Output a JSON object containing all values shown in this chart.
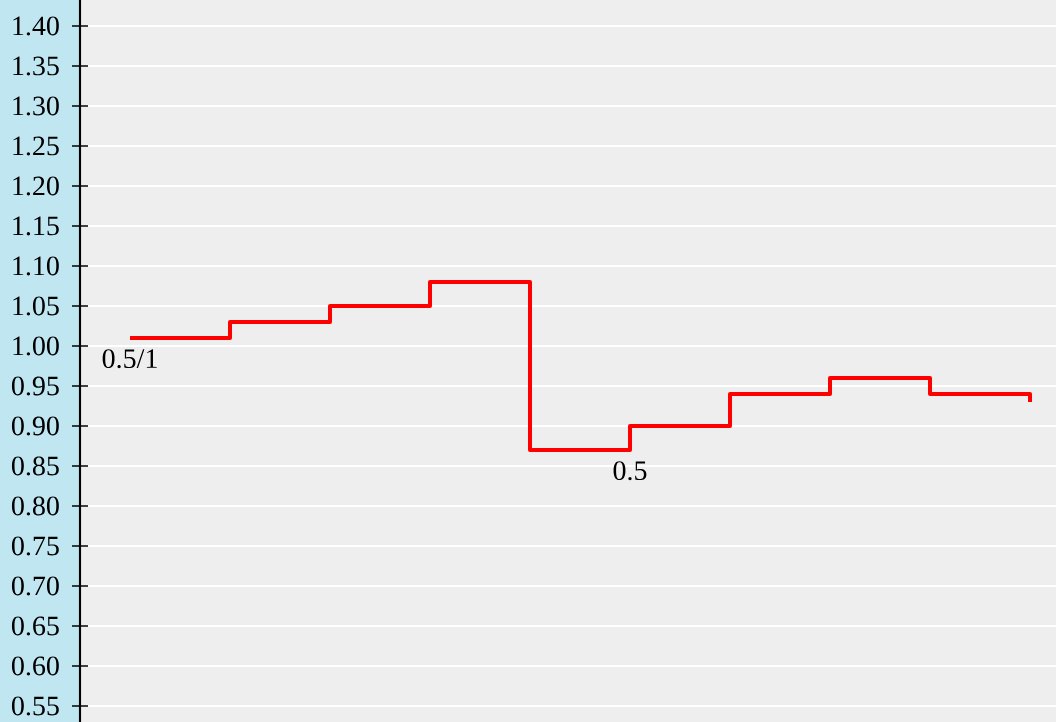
{
  "chart_data": {
    "type": "step",
    "categories": [
      null,
      null,
      null,
      null,
      null,
      null,
      null,
      null,
      null,
      null
    ],
    "values": [
      1.01,
      1.03,
      1.05,
      1.08,
      0.87,
      0.9,
      0.94,
      0.96,
      0.94,
      0.93
    ],
    "annotations": [
      {
        "text": "0.5/1",
        "y": 1.01
      },
      {
        "text": "0.5",
        "y": 0.87
      }
    ],
    "color": "#ff0000",
    "ylim": [
      0.53,
      1.4325
    ],
    "yticks": [
      {
        "value": 0.55,
        "label": "0.55"
      },
      {
        "value": 0.6,
        "label": "0.60"
      },
      {
        "value": 0.65,
        "label": "0.65"
      },
      {
        "value": 0.7,
        "label": "0.70"
      },
      {
        "value": 0.75,
        "label": "0.75"
      },
      {
        "value": 0.8,
        "label": "0.80"
      },
      {
        "value": 0.85,
        "label": "0.85"
      },
      {
        "value": 0.9,
        "label": "0.90"
      },
      {
        "value": 0.95,
        "label": "0.95"
      },
      {
        "value": 1.0,
        "label": "1.00"
      },
      {
        "value": 1.05,
        "label": "1.05"
      },
      {
        "value": 1.1,
        "label": "1.10"
      },
      {
        "value": 1.15,
        "label": "1.15"
      },
      {
        "value": 1.2,
        "label": "1.20"
      },
      {
        "value": 1.25,
        "label": "1.25"
      },
      {
        "value": 1.3,
        "label": "1.30"
      },
      {
        "value": 1.35,
        "label": "1.35"
      },
      {
        "value": 1.4,
        "label": "1.40"
      }
    ],
    "grid": "y",
    "tick_labels": "y",
    "marker": "none",
    "line_style": "solid"
  }
}
